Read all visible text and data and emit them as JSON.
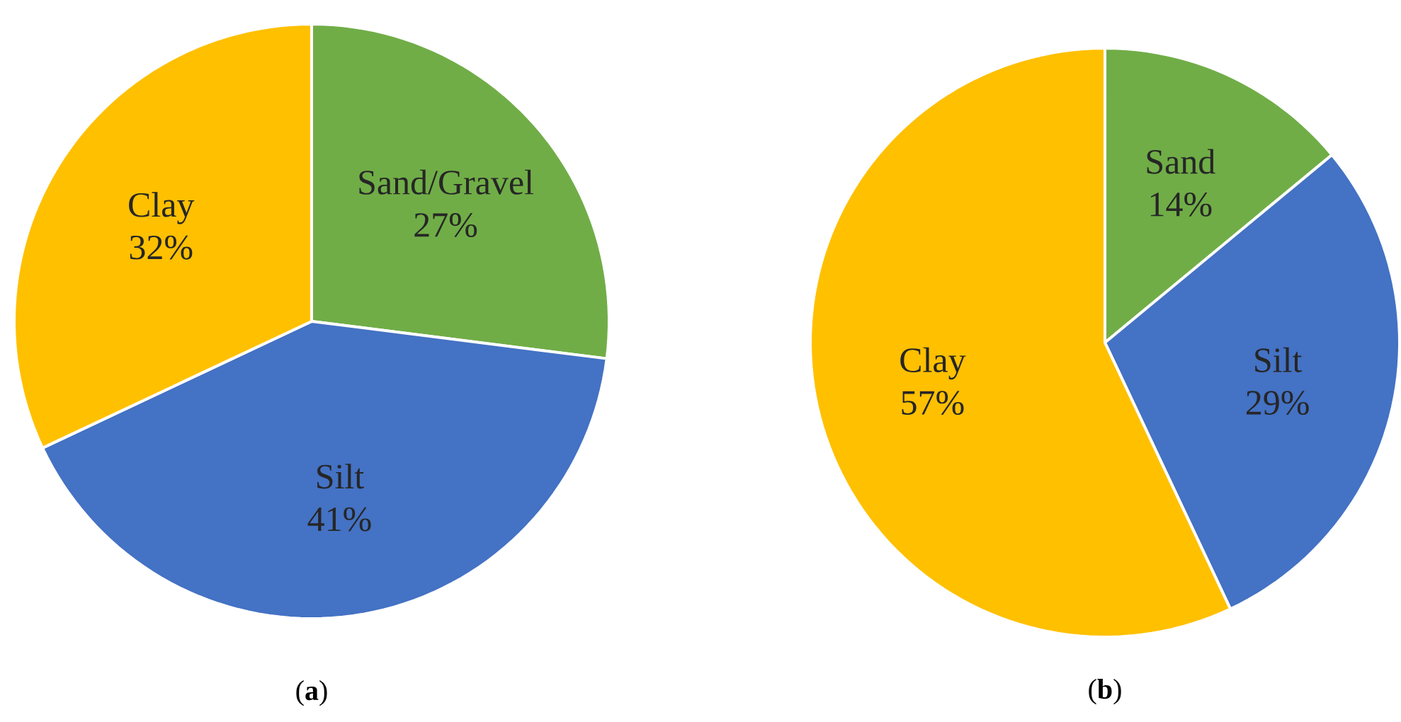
{
  "chart_data": [
    {
      "type": "pie",
      "title": "(**a**)",
      "categories": [
        "Sand/Gravel",
        "Silt",
        "Clay"
      ],
      "values": [
        27,
        41,
        32
      ],
      "colors": [
        "#70ad47",
        "#4472c4",
        "#ffc000"
      ],
      "value_labels": [
        "27%",
        "41%",
        "32%"
      ]
    },
    {
      "type": "pie",
      "title": "(**b**)",
      "categories": [
        "Sand",
        "Silt",
        "Clay"
      ],
      "values": [
        14,
        29,
        57
      ],
      "colors": [
        "#70ad47",
        "#4472c4",
        "#ffc000"
      ],
      "value_labels": [
        "14%",
        "29%",
        "57%"
      ]
    }
  ]
}
